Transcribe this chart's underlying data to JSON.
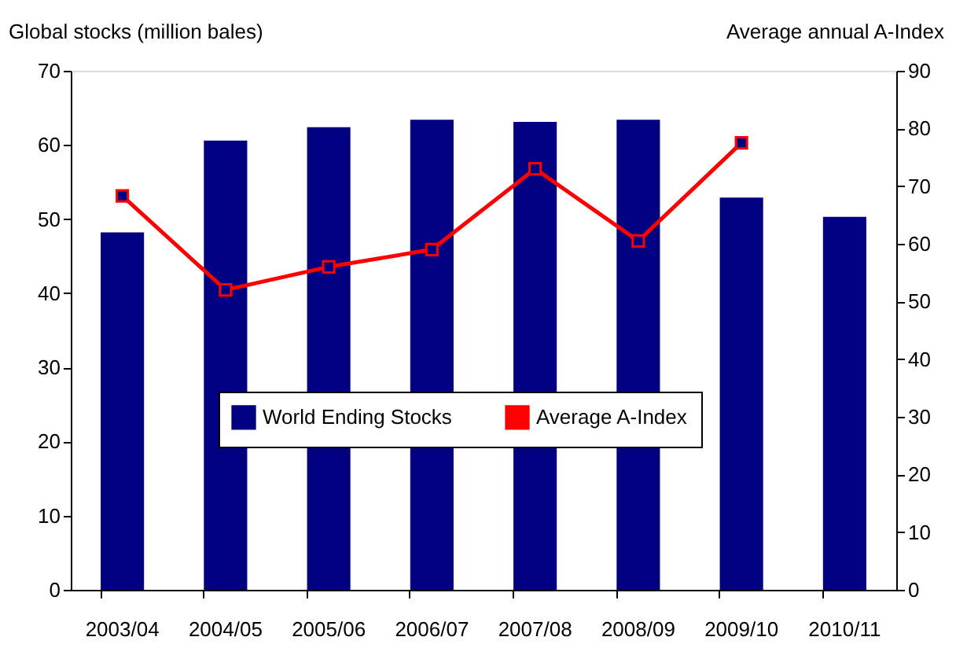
{
  "chart_data": {
    "type": "bar",
    "ylabel": "Global stocks (million bales)",
    "y2label": "Average annual A-Index",
    "categories": [
      "2003/04",
      "2004/05",
      "2005/06",
      "2006/07",
      "2007/08",
      "2008/09",
      "2009/10",
      "2010/11"
    ],
    "series": [
      {
        "name": "World Ending Stocks",
        "color": "#000080",
        "values": [
          48.2,
          60.6,
          62.4,
          63.4,
          63.1,
          63.4,
          52.9,
          50.3
        ]
      },
      {
        "name": "Average A-Index",
        "type": "line",
        "axis": "y2",
        "color": "#ff0000",
        "marker": "square",
        "line_style": "solid",
        "values": [
          68.3,
          52.0,
          56.0,
          59.0,
          73.0,
          60.5,
          77.5,
          null
        ]
      }
    ],
    "ylim": [
      0,
      70
    ],
    "yticks": [
      0,
      10,
      20,
      30,
      40,
      50,
      60,
      70
    ],
    "y2lim": [
      0,
      90
    ],
    "y2ticks": [
      0,
      10,
      20,
      30,
      40,
      50,
      60,
      70,
      80,
      90
    ],
    "grid": false,
    "legend": "bottom"
  }
}
